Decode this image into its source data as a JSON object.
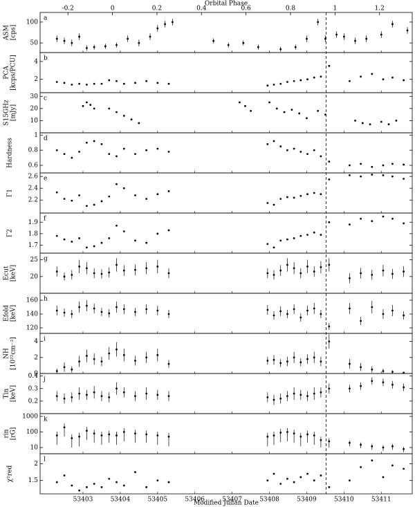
{
  "chart_data": {
    "type": "scatter",
    "xlabel": "Modified Julian Date",
    "xlim": [
      53401.85,
      53411.83
    ],
    "xticks": [
      53403,
      53404,
      53405,
      53406,
      53407,
      53408,
      53409,
      53410,
      53411
    ],
    "top_axis": {
      "label": "Orbital Phase",
      "xlim": [
        -0.325,
        1.347
      ],
      "xticks": [
        -0.2,
        0,
        0.2,
        0.4,
        0.6,
        0.8,
        1,
        1.2
      ]
    },
    "reference_line": {
      "x": 53409.52,
      "style": "dashed"
    },
    "x": [
      53402.3,
      53402.5,
      53402.7,
      53402.9,
      53403.1,
      53403.3,
      53403.5,
      53403.7,
      53403.9,
      53404.1,
      53404.4,
      53404.7,
      53405.0,
      53405.3,
      53407.95,
      53408.12,
      53408.3,
      53408.48,
      53408.66,
      53408.84,
      53409.02,
      53409.2,
      53409.38,
      53409.6,
      53410.15,
      53410.45,
      53410.75,
      53411.05,
      53411.3,
      53411.6
    ],
    "panels": [
      {
        "label": "a",
        "ylabel": [
          "ASM",
          "[cps]"
        ],
        "ylim": [
          27,
          123
        ],
        "yticks": [
          50,
          100
        ],
        "x": [
          53402.3,
          53402.5,
          53402.7,
          53402.9,
          53403.1,
          53403.3,
          53403.6,
          53403.9,
          53404.2,
          53404.5,
          53404.8,
          53405.0,
          53405.2,
          53405.4,
          53406.5,
          53406.9,
          53407.3,
          53407.7,
          53408.3,
          53408.7,
          53409.0,
          53409.3,
          53409.5,
          53409.8,
          53410.0,
          53410.3,
          53410.6,
          53411.0,
          53411.3,
          53411.7
        ],
        "values": [
          60,
          55,
          50,
          65,
          38,
          40,
          42,
          45,
          60,
          50,
          65,
          85,
          95,
          100,
          55,
          45,
          50,
          40,
          35,
          40,
          60,
          100,
          60,
          70,
          65,
          55,
          60,
          70,
          95,
          80
        ],
        "errors": [
          8,
          8,
          8,
          8,
          6,
          6,
          6,
          6,
          8,
          8,
          8,
          8,
          8,
          8,
          6,
          6,
          6,
          6,
          6,
          6,
          8,
          8,
          8,
          8,
          8,
          8,
          8,
          8,
          8,
          8
        ]
      },
      {
        "label": "b",
        "ylabel": [
          "PCA",
          "[kcps/PCU]"
        ],
        "ylim": [
          0.5,
          5
        ],
        "yticks": [
          2,
          4
        ],
        "values": [
          1.7,
          1.6,
          1.4,
          1.5,
          1.4,
          1.5,
          1.5,
          1.9,
          1.8,
          1.5,
          1.6,
          1.8,
          1.6,
          1.5,
          1.3,
          1.4,
          1.5,
          1.7,
          1.8,
          1.9,
          2.0,
          2.2,
          2.3,
          3.5,
          1.8,
          2.3,
          2.6,
          2.0,
          2.2,
          1.9
        ]
      },
      {
        "label": "c",
        "ylabel": [
          "S15GHz",
          "[mJy]"
        ],
        "ylim": [
          0,
          33
        ],
        "yticks": [
          10,
          20,
          30
        ],
        "x": [
          53403.0,
          53403.1,
          53403.2,
          53403.3,
          53403.7,
          53403.9,
          53404.1,
          53404.3,
          53404.5,
          53407.2,
          53407.35,
          53407.5,
          53408.0,
          53408.2,
          53408.4,
          53408.6,
          53408.8,
          53409.0,
          53409.3,
          53409.5,
          53410.3,
          53410.5,
          53410.7,
          53411.0,
          53411.2,
          53411.4
        ],
        "values": [
          22,
          25,
          23,
          20,
          20,
          17,
          14,
          11,
          8,
          25,
          22,
          18,
          25,
          20,
          17,
          19,
          16,
          12,
          18,
          15,
          10,
          8,
          7,
          9,
          7,
          10
        ]
      },
      {
        "label": "d",
        "ylabel": [
          "Hardness"
        ],
        "ylim": [
          0.5,
          1.03
        ],
        "yticks": [
          0.6,
          0.8,
          1
        ],
        "values": [
          0.8,
          0.75,
          0.7,
          0.78,
          0.9,
          0.92,
          0.88,
          0.75,
          0.72,
          0.82,
          0.75,
          0.8,
          0.82,
          0.78,
          0.88,
          0.92,
          0.85,
          0.8,
          0.82,
          0.78,
          0.75,
          0.8,
          0.72,
          0.65,
          0.6,
          0.62,
          0.58,
          0.6,
          0.62,
          0.61
        ]
      },
      {
        "label": "e",
        "ylabel": [
          "Γ1"
        ],
        "ylim": [
          1.98,
          2.66
        ],
        "yticks": [
          2.2,
          2.4,
          2.6
        ],
        "values": [
          2.33,
          2.22,
          2.19,
          2.28,
          2.1,
          2.12,
          2.18,
          2.26,
          2.47,
          2.4,
          2.28,
          2.22,
          2.3,
          2.35,
          2.15,
          2.12,
          2.22,
          2.25,
          2.24,
          2.27,
          2.3,
          2.32,
          2.3,
          2.55,
          2.62,
          2.6,
          2.63,
          2.62,
          2.6,
          2.56
        ]
      },
      {
        "label": "f",
        "ylabel": [
          "Γ2"
        ],
        "ylim": [
          1.63,
          1.98
        ],
        "yticks": [
          1.7,
          1.8,
          1.9
        ],
        "values": [
          1.78,
          1.75,
          1.73,
          1.76,
          1.68,
          1.69,
          1.72,
          1.76,
          1.87,
          1.82,
          1.74,
          1.72,
          1.8,
          1.83,
          1.71,
          1.68,
          1.74,
          1.75,
          1.76,
          1.78,
          1.79,
          1.81,
          1.79,
          1.9,
          1.88,
          1.93,
          1.91,
          1.95,
          1.93,
          1.89
        ]
      },
      {
        "label": "g",
        "ylabel": [
          "Ecut",
          "[keV]"
        ],
        "ylim": [
          15,
          27
        ],
        "yticks": [
          20,
          25
        ],
        "values": [
          21.5,
          20,
          20.5,
          23,
          22.5,
          21,
          20.8,
          21.2,
          23.5,
          21.8,
          22,
          22.5,
          23,
          21,
          21,
          20.5,
          21.8,
          23.5,
          22.5,
          21,
          23,
          21.5,
          22.8,
          23.5,
          19.5,
          21,
          20.5,
          21.8,
          20.8,
          21.5
        ],
        "errors": [
          1.5,
          1.2,
          1.4,
          2,
          1.8,
          1.5,
          1.4,
          1.5,
          2,
          1.6,
          1.6,
          1.8,
          2,
          1.5,
          1.5,
          1.4,
          1.6,
          2,
          1.8,
          1.5,
          2,
          1.6,
          1.8,
          2,
          1.5,
          1.6,
          1.5,
          1.7,
          1.5,
          1.6
        ]
      },
      {
        "label": "h",
        "ylabel": [
          "Efold",
          "[keV]"
        ],
        "ylim": [
          112,
          170
        ],
        "yticks": [
          120,
          140,
          160
        ],
        "values": [
          145,
          142,
          140,
          150,
          152,
          148,
          143,
          141,
          150,
          147,
          143,
          147,
          145,
          140,
          146,
          138,
          144,
          140,
          147,
          135,
          145,
          148,
          140,
          122,
          148,
          130,
          150,
          140,
          145,
          138
        ],
        "errors": [
          7,
          6,
          6,
          8,
          8,
          7,
          6,
          6,
          8,
          7,
          6,
          7,
          7,
          6,
          7,
          6,
          7,
          6,
          7,
          6,
          7,
          8,
          6,
          5,
          8,
          6,
          9,
          7,
          8,
          6
        ]
      },
      {
        "label": "i",
        "ylabel": [
          "NH",
          "[10²²cm⁻²]"
        ],
        "ylim": [
          0,
          5
        ],
        "yticks": [
          0,
          2,
          4
        ],
        "values": [
          0.3,
          0.8,
          0.5,
          1.5,
          2.2,
          1.8,
          1.5,
          2.5,
          3,
          2.3,
          1.6,
          2,
          2.3,
          1.2,
          1.6,
          1.7,
          1.3,
          1.5,
          2,
          1.4,
          1.8,
          2,
          1.5,
          4,
          1.2,
          0.8,
          0.5,
          0.3,
          0.2,
          0.1
        ],
        "errors": [
          0.3,
          0.6,
          0.4,
          0.7,
          0.8,
          0.7,
          0.6,
          0.8,
          0.9,
          0.8,
          0.6,
          0.7,
          0.8,
          0.5,
          0.5,
          0.6,
          0.5,
          0.6,
          0.7,
          0.5,
          0.6,
          0.7,
          0.6,
          0.9,
          0.6,
          0.5,
          0.4,
          0.3,
          0.2,
          0.1
        ]
      },
      {
        "label": "j",
        "ylabel": [
          "Tin",
          "[keV]"
        ],
        "ylim": [
          0.1,
          0.42
        ],
        "yticks": [
          0.2,
          0.3,
          0.4
        ],
        "values": [
          0.24,
          0.22,
          0.23,
          0.26,
          0.25,
          0.27,
          0.24,
          0.23,
          0.3,
          0.27,
          0.24,
          0.26,
          0.25,
          0.24,
          0.23,
          0.21,
          0.22,
          0.24,
          0.26,
          0.25,
          0.24,
          0.26,
          0.27,
          0.3,
          0.3,
          0.32,
          0.36,
          0.35,
          0.33,
          0.31
        ],
        "errors": [
          0.04,
          0.04,
          0.04,
          0.05,
          0.04,
          0.05,
          0.04,
          0.04,
          0.05,
          0.04,
          0.04,
          0.05,
          0.04,
          0.04,
          0.04,
          0.04,
          0.04,
          0.04,
          0.05,
          0.04,
          0.04,
          0.05,
          0.04,
          0.04,
          0.03,
          0.03,
          0.03,
          0.03,
          0.03,
          0.03
        ]
      },
      {
        "label": "k",
        "ylabel": [
          "rin",
          "[rG]"
        ],
        "ylim": [
          4,
          1500
        ],
        "yticks": [
          10,
          100,
          1000
        ],
        "log": true,
        "values": [
          60,
          200,
          40,
          50,
          120,
          80,
          60,
          70,
          60,
          100,
          80,
          70,
          60,
          50,
          50,
          60,
          90,
          100,
          80,
          50,
          70,
          60,
          30,
          25,
          20,
          15,
          12,
          10,
          12,
          8
        ],
        "errors": [
          45,
          150,
          30,
          38,
          90,
          60,
          45,
          50,
          45,
          75,
          60,
          50,
          45,
          38,
          38,
          45,
          68,
          75,
          60,
          38,
          50,
          45,
          20,
          15,
          8,
          6,
          5,
          4,
          5,
          3
        ]
      },
      {
        "label": "l",
        "ylabel": [
          "χ²red"
        ],
        "ylim": [
          1.1,
          2.3
        ],
        "yticks": [
          1.5,
          2
        ],
        "values": [
          1.45,
          1.65,
          1.35,
          1.2,
          1.3,
          1.4,
          1.3,
          1.55,
          1.45,
          1.35,
          1.75,
          1.3,
          1.5,
          1.45,
          1.5,
          1.7,
          1.4,
          1.55,
          1.45,
          1.6,
          1.7,
          1.5,
          1.65,
          1.3,
          1.5,
          1.9,
          2.1,
          1.6,
          1.95,
          1.85
        ]
      }
    ]
  }
}
